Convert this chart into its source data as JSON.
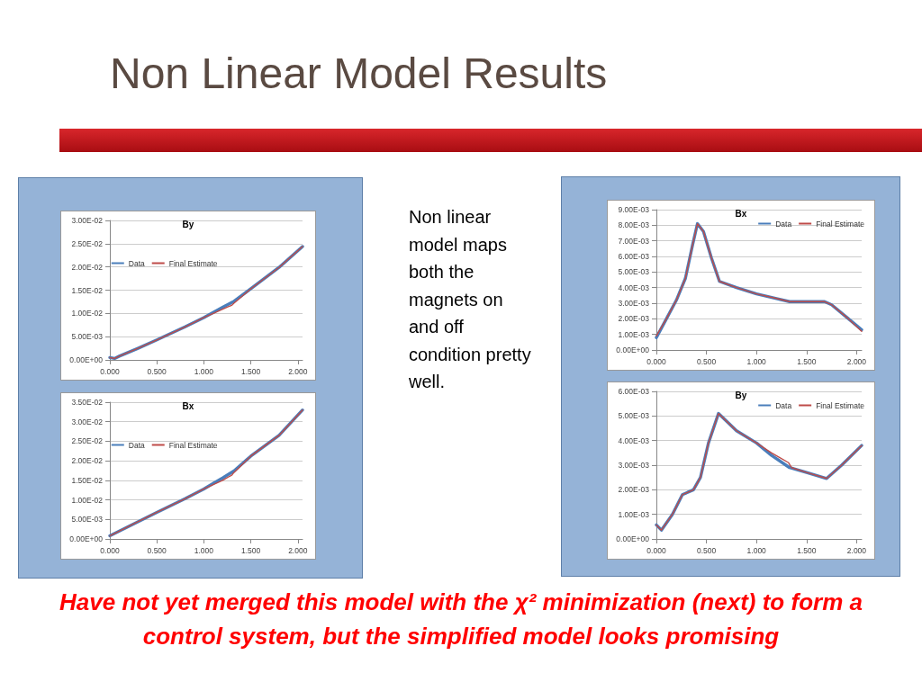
{
  "chart_data": [
    {
      "type": "other",
      "title": "Non Linear Model Results",
      "annotations": [
        "Non linear model maps both the magnets on and off condition pretty well.",
        "Have not yet merged this model with the χ² minimization (next) to form a control system, but the simplified model looks promising"
      ]
    },
    {
      "type": "line",
      "title": "By",
      "legend": "top left",
      "grid": "y",
      "marker": "none",
      "line_style": "solid",
      "xlim": [
        0,
        2.05
      ],
      "xticks": [
        {
          "value": 0,
          "label": "0.000"
        },
        {
          "value": 0.5,
          "label": "0.500"
        },
        {
          "value": 1,
          "label": "1.000"
        },
        {
          "value": 1.5,
          "label": "1.500"
        },
        {
          "value": 2,
          "label": "2.000"
        }
      ],
      "ylim": [
        0,
        0.03
      ],
      "yticks": [
        {
          "value": 0,
          "label": "0.00E+00"
        },
        {
          "value": 0.005,
          "label": "5.00E-03"
        },
        {
          "value": 0.01,
          "label": "1.00E-02"
        },
        {
          "value": 0.015,
          "label": "1.50E-02"
        },
        {
          "value": 0.02,
          "label": "2.00E-02"
        },
        {
          "value": 0.025,
          "label": "2.50E-02"
        },
        {
          "value": 0.03,
          "label": "3.00E-02"
        }
      ],
      "series": [
        {
          "name": "Data",
          "color": "#4a7ebb",
          "x": [
            0,
            0.05,
            0.1,
            0.3,
            0.5,
            0.8,
            1.0,
            1.1,
            1.2,
            1.3,
            1.32,
            1.5,
            1.8,
            2.05
          ],
          "values": [
            0.0005,
            0.0003,
            0.0008,
            0.0025,
            0.0043,
            0.0071,
            0.0091,
            0.0102,
            0.0113,
            0.0124,
            0.0126,
            0.0153,
            0.0199,
            0.0244
          ]
        },
        {
          "name": "Final Estimate",
          "color": "#be4b48",
          "x": [
            0,
            0.05,
            0.1,
            0.3,
            0.5,
            0.8,
            1.0,
            1.1,
            1.2,
            1.3,
            1.32,
            1.5,
            1.8,
            2.05
          ],
          "values": [
            0.0005,
            0.0003,
            0.0008,
            0.0025,
            0.0043,
            0.0071,
            0.0091,
            0.01,
            0.0109,
            0.0118,
            0.0122,
            0.0153,
            0.0199,
            0.0244
          ]
        }
      ]
    },
    {
      "type": "line",
      "title": "Bx",
      "legend": "top left",
      "grid": "y",
      "marker": "none",
      "line_style": "solid",
      "xlim": [
        0,
        2.05
      ],
      "xticks": [
        {
          "value": 0,
          "label": "0.000"
        },
        {
          "value": 0.5,
          "label": "0.500"
        },
        {
          "value": 1,
          "label": "1.000"
        },
        {
          "value": 1.5,
          "label": "1.500"
        },
        {
          "value": 2,
          "label": "2.000"
        }
      ],
      "ylim": [
        0,
        0.035
      ],
      "yticks": [
        {
          "value": 0,
          "label": "0.00E+00"
        },
        {
          "value": 0.005,
          "label": "5.00E-03"
        },
        {
          "value": 0.01,
          "label": "1.00E-02"
        },
        {
          "value": 0.015,
          "label": "1.50E-02"
        },
        {
          "value": 0.02,
          "label": "2.00E-02"
        },
        {
          "value": 0.025,
          "label": "2.50E-02"
        },
        {
          "value": 0.03,
          "label": "3.00E-02"
        },
        {
          "value": 0.035,
          "label": "3.50E-02"
        }
      ],
      "series": [
        {
          "name": "Data",
          "color": "#4a7ebb",
          "x": [
            0,
            0.25,
            0.5,
            0.8,
            1.0,
            1.1,
            1.2,
            1.3,
            1.32,
            1.5,
            1.8,
            2.05
          ],
          "values": [
            0.0008,
            0.0038,
            0.0068,
            0.0103,
            0.0128,
            0.0142,
            0.0156,
            0.0171,
            0.0174,
            0.0212,
            0.0265,
            0.033
          ]
        },
        {
          "name": "Final Estimate",
          "color": "#be4b48",
          "x": [
            0,
            0.25,
            0.5,
            0.8,
            1.0,
            1.1,
            1.2,
            1.3,
            1.32,
            1.5,
            1.8,
            2.05
          ],
          "values": [
            0.0008,
            0.0038,
            0.0068,
            0.0103,
            0.0128,
            0.0139,
            0.015,
            0.0164,
            0.017,
            0.0212,
            0.0265,
            0.033
          ]
        }
      ]
    },
    {
      "type": "line",
      "title": "Bx",
      "legend": "top right",
      "grid": "y",
      "marker": "none",
      "line_style": "solid",
      "xlim": [
        0,
        2.05
      ],
      "xticks": [
        {
          "value": 0,
          "label": "0.000"
        },
        {
          "value": 0.5,
          "label": "0.500"
        },
        {
          "value": 1,
          "label": "1.000"
        },
        {
          "value": 1.5,
          "label": "1.500"
        },
        {
          "value": 2,
          "label": "2.000"
        }
      ],
      "ylim": [
        0,
        0.009
      ],
      "yticks": [
        {
          "value": 0,
          "label": "0.00E+00"
        },
        {
          "value": 0.001,
          "label": "1.00E-03"
        },
        {
          "value": 0.002,
          "label": "2.00E-03"
        },
        {
          "value": 0.003,
          "label": "3.00E-03"
        },
        {
          "value": 0.004,
          "label": "4.00E-03"
        },
        {
          "value": 0.005,
          "label": "5.00E-03"
        },
        {
          "value": 0.006,
          "label": "6.00E-03"
        },
        {
          "value": 0.007,
          "label": "7.00E-03"
        },
        {
          "value": 0.008,
          "label": "8.00E-03"
        },
        {
          "value": 0.009,
          "label": "9.00E-03"
        }
      ],
      "series": [
        {
          "name": "Data",
          "color": "#4a7ebb",
          "x": [
            0,
            0.1,
            0.2,
            0.29,
            0.36,
            0.41,
            0.47,
            0.55,
            0.63,
            0.8,
            1.0,
            1.2,
            1.33,
            1.5,
            1.68,
            1.75,
            1.9,
            2.05
          ],
          "values": [
            0.0008,
            0.002,
            0.0032,
            0.0046,
            0.0067,
            0.0081,
            0.0076,
            0.0059,
            0.0044,
            0.004,
            0.0036,
            0.0033,
            0.0031,
            0.0031,
            0.0031,
            0.0029,
            0.0021,
            0.0013
          ]
        },
        {
          "name": "Final Estimate",
          "color": "#be4b48",
          "x": [
            0,
            0.1,
            0.2,
            0.29,
            0.36,
            0.41,
            0.47,
            0.55,
            0.63,
            0.8,
            1.0,
            1.2,
            1.33,
            1.5,
            1.68,
            1.75,
            1.9,
            2.05
          ],
          "values": [
            0.0009,
            0.002,
            0.0032,
            0.0046,
            0.0067,
            0.0081,
            0.0076,
            0.0059,
            0.0044,
            0.004,
            0.0036,
            0.0033,
            0.0031,
            0.0031,
            0.0031,
            0.0029,
            0.0021,
            0.0012
          ]
        }
      ]
    },
    {
      "type": "line",
      "title": "By",
      "legend": "top right",
      "grid": "y",
      "marker": "none",
      "line_style": "solid",
      "xlim": [
        0,
        2.05
      ],
      "xticks": [
        {
          "value": 0,
          "label": "0.000"
        },
        {
          "value": 0.5,
          "label": "0.500"
        },
        {
          "value": 1,
          "label": "1.000"
        },
        {
          "value": 1.5,
          "label": "1.500"
        },
        {
          "value": 2,
          "label": "2.000"
        }
      ],
      "ylim": [
        0,
        0.006
      ],
      "yticks": [
        {
          "value": 0,
          "label": "0.00E+00"
        },
        {
          "value": 0.001,
          "label": "1.00E-03"
        },
        {
          "value": 0.002,
          "label": "2.00E-03"
        },
        {
          "value": 0.003,
          "label": "3.00E-03"
        },
        {
          "value": 0.004,
          "label": "4.00E-03"
        },
        {
          "value": 0.005,
          "label": "5.00E-03"
        },
        {
          "value": 0.006,
          "label": "6.00E-03"
        }
      ],
      "series": [
        {
          "name": "Data",
          "color": "#4a7ebb",
          "x": [
            0,
            0.05,
            0.16,
            0.26,
            0.37,
            0.44,
            0.52,
            0.62,
            0.8,
            1.0,
            1.15,
            1.33,
            1.5,
            1.7,
            1.85,
            2.05
          ],
          "values": [
            0.00057,
            0.00036,
            0.001,
            0.0018,
            0.002,
            0.0025,
            0.0039,
            0.0051,
            0.0044,
            0.0039,
            0.0034,
            0.0029,
            0.0027,
            0.00246,
            0.003,
            0.0038
          ]
        },
        {
          "name": "Final Estimate",
          "color": "#be4b48",
          "x": [
            0,
            0.05,
            0.16,
            0.26,
            0.37,
            0.44,
            0.52,
            0.62,
            0.8,
            1.0,
            1.15,
            1.32,
            1.35,
            1.5,
            1.7,
            1.85,
            2.05
          ],
          "values": [
            0.00057,
            0.00036,
            0.001,
            0.0018,
            0.002,
            0.0025,
            0.0039,
            0.0051,
            0.0044,
            0.0039,
            0.0035,
            0.0031,
            0.0029,
            0.0027,
            0.00246,
            0.003,
            0.0038
          ]
        }
      ]
    }
  ]
}
